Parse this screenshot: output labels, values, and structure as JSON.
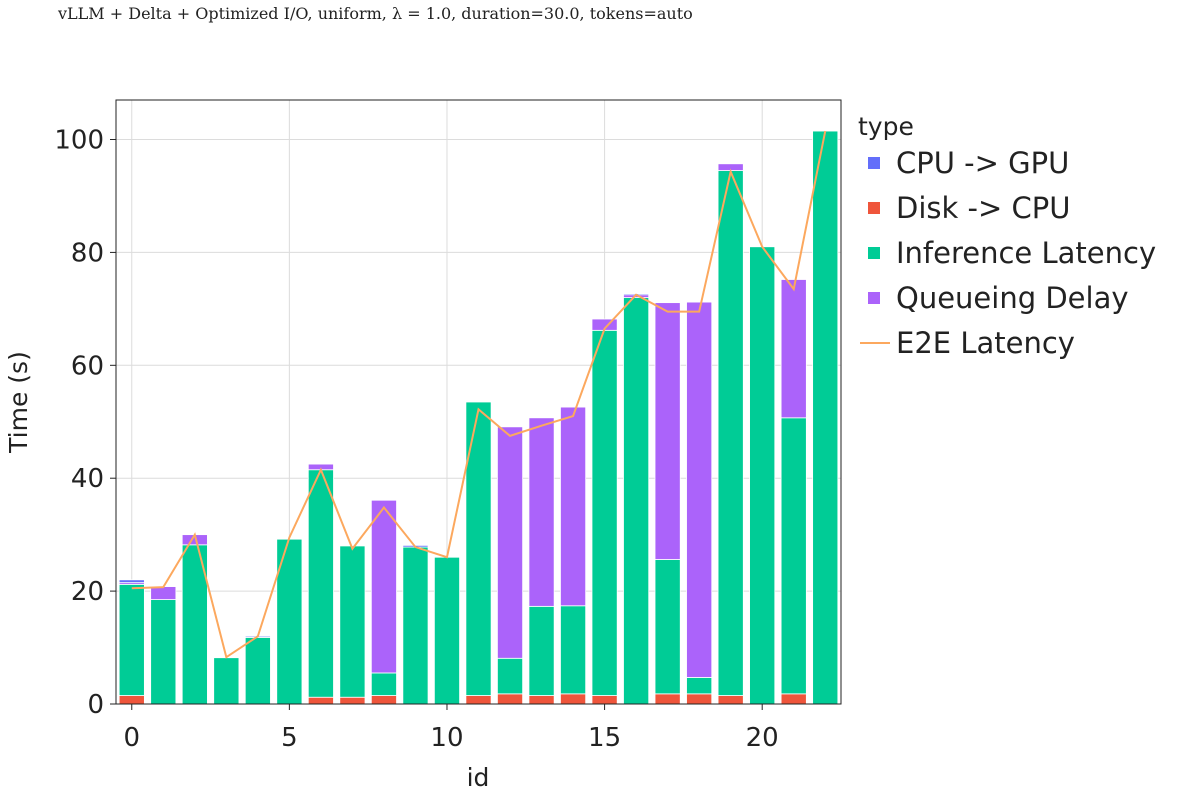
{
  "chart_data": {
    "type": "bar",
    "stacked": true,
    "title": "vLLM + Delta + Optimized I/O, uniform, λ = 1.0, duration=30.0, tokens=auto",
    "xlabel": "id",
    "ylabel": "Time (s)",
    "xlim": [
      -0.5,
      22.5
    ],
    "ylim": [
      0,
      107
    ],
    "x_ticks": [
      0,
      5,
      10,
      15,
      20
    ],
    "y_ticks": [
      0,
      20,
      40,
      60,
      80,
      100
    ],
    "grid": true,
    "legend": {
      "title": "type",
      "placement": "right",
      "entries": [
        "CPU -> GPU",
        "Disk -> CPU",
        "Inference Latency",
        "Queueing Delay",
        "E2E Latency"
      ]
    },
    "x": [
      0,
      1,
      2,
      3,
      4,
      5,
      6,
      7,
      8,
      9,
      10,
      11,
      12,
      13,
      14,
      15,
      16,
      17,
      18,
      19,
      20,
      21,
      22
    ],
    "series": [
      {
        "name": "Disk -> CPU",
        "color": "#ef553b",
        "values": [
          1.5,
          0,
          0,
          0,
          0,
          0,
          1.2,
          1.2,
          1.5,
          0,
          0,
          1.5,
          1.8,
          1.5,
          1.8,
          1.5,
          0,
          1.8,
          1.8,
          1.5,
          0,
          1.8,
          0
        ]
      },
      {
        "name": "Inference Latency",
        "color": "#00cc96",
        "values": [
          19.7,
          18.5,
          28.2,
          8.2,
          11.8,
          29.2,
          40.3,
          26.8,
          4.0,
          27.8,
          26.0,
          52.0,
          6.3,
          15.8,
          15.6,
          64.7,
          72.0,
          23.8,
          2.9,
          93.0,
          81.0,
          48.9,
          101.5
        ]
      },
      {
        "name": "Queueing Delay",
        "color": "#ab63fa",
        "values": [
          0.3,
          2.3,
          1.8,
          0,
          0,
          0,
          1.0,
          0,
          30.6,
          0,
          0,
          0,
          41.0,
          33.4,
          35.2,
          2.0,
          0.5,
          45.5,
          66.5,
          1.2,
          0,
          24.5,
          0
        ]
      },
      {
        "name": "CPU -> GPU",
        "color": "#636efa",
        "values": [
          0.5,
          0,
          0,
          0,
          0.2,
          0,
          0,
          0,
          0,
          0.3,
          0,
          0,
          0,
          0,
          0,
          0,
          0.2,
          0,
          0,
          0,
          0,
          0,
          0
        ]
      }
    ],
    "line": {
      "name": "E2E Latency",
      "color": "#fca85e",
      "values": [
        20.5,
        20.7,
        30.0,
        8.3,
        12.0,
        29.5,
        41.5,
        27.5,
        34.8,
        27.8,
        26.0,
        52.2,
        47.5,
        49.3,
        51.0,
        66.5,
        72.5,
        69.5,
        69.5,
        94.3,
        81.0,
        73.5,
        101.5
      ]
    }
  }
}
